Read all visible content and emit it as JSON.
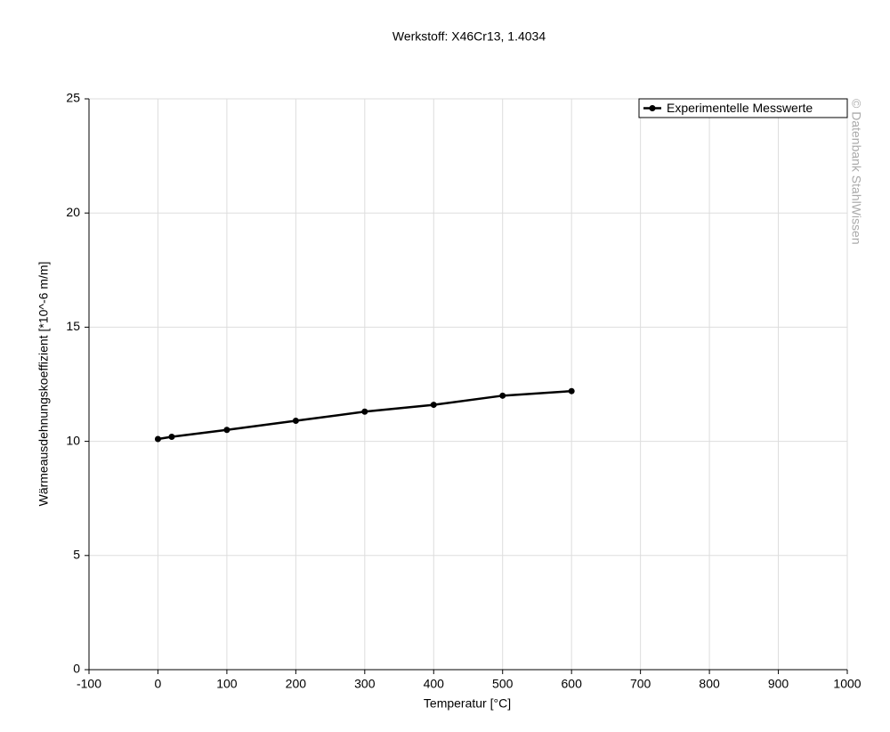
{
  "chart_data": {
    "type": "line",
    "title": "Werkstoff: X46Cr13, 1.4034",
    "x_label": "Temperatur [°C]",
    "y_label": "Wärmeausdehnungskoeffizient [*10^-6 m/m]",
    "watermark": "© Datenbank StahlWissen",
    "x": [
      0,
      20,
      100,
      200,
      300,
      400,
      500,
      600
    ],
    "series": [
      {
        "name": "Experimentelle Messwerte",
        "color": "#000000",
        "values": [
          10.1,
          10.2,
          10.5,
          10.9,
          11.3,
          11.6,
          12.0,
          12.2
        ]
      }
    ],
    "xlim": [
      -100,
      1000
    ],
    "xticks": [
      -100,
      0,
      100,
      200,
      300,
      400,
      500,
      600,
      700,
      800,
      900,
      1000
    ],
    "ylim": [
      0,
      25
    ],
    "yticks": [
      0,
      5,
      10,
      15,
      20,
      25
    ],
    "grid": true,
    "legend": "top-right"
  }
}
